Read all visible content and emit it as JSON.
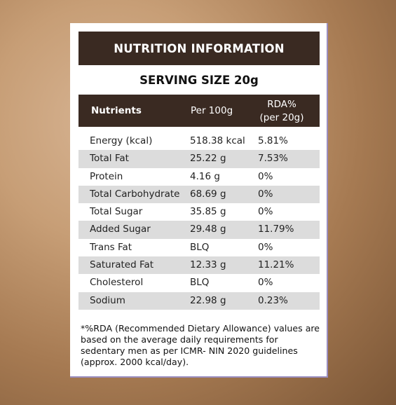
{
  "title": "NUTRITION INFORMATION",
  "serving_size": "SERVING SIZE 20g",
  "columns": {
    "nutrients": "Nutrients",
    "per100": "Per 100g",
    "rda_line1": "RDA%",
    "rda_line2": "(per 20g)"
  },
  "rows": [
    {
      "name": "Energy (kcal)",
      "per100": "518.38 kcal",
      "rda": "5.81%"
    },
    {
      "name": "Total Fat",
      "per100": "25.22 g",
      "rda": "7.53%"
    },
    {
      "name": "Protein",
      "per100": "4.16 g",
      "rda": "0%"
    },
    {
      "name": "Total Carbohydrate",
      "per100": "68.69 g",
      "rda": "0%"
    },
    {
      "name": "Total Sugar",
      "per100": "35.85 g",
      "rda": "0%"
    },
    {
      "name": "Added Sugar",
      "per100": "29.48 g",
      "rda": "11.79%"
    },
    {
      "name": "Trans Fat",
      "per100": "BLQ",
      "rda": "0%"
    },
    {
      "name": "Saturated Fat",
      "per100": "12.33 g",
      "rda": "11.21%"
    },
    {
      "name": "Cholesterol",
      "per100": "BLQ",
      "rda": "0%"
    },
    {
      "name": "Sodium",
      "per100": "22.98 g",
      "rda": "0.23%"
    }
  ],
  "footnote": "*%RDA (Recommended Dietary Allowance) values are based on the average daily requirements for sedentary men as per ICMR- NIN 2020 guidelines (approx. 2000 kcal/day).",
  "colors": {
    "header_bg": "#3a2a22",
    "row_shade": "#dcdcdc"
  }
}
